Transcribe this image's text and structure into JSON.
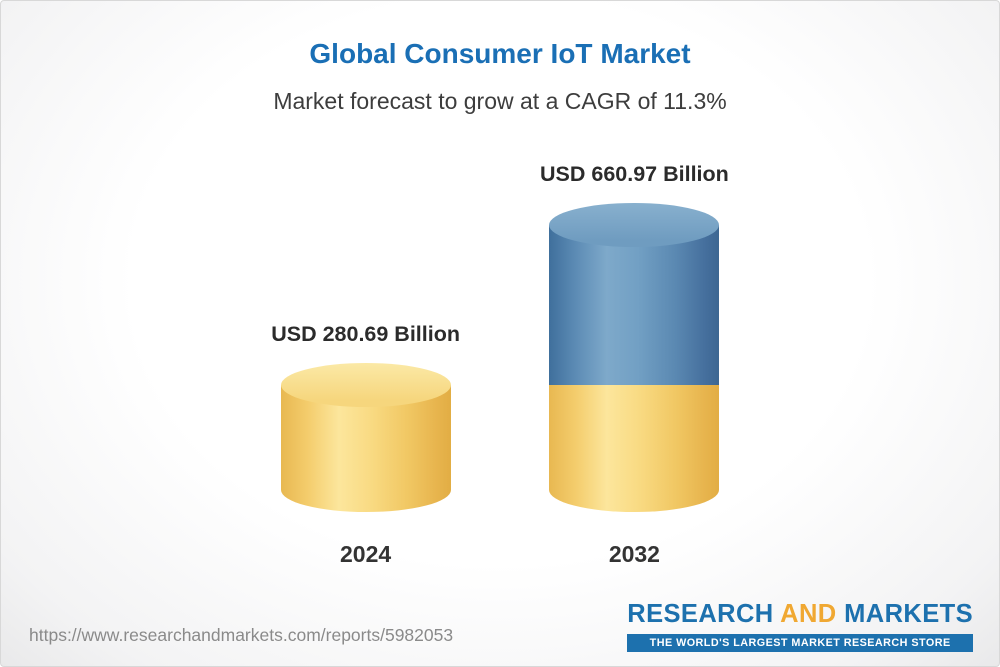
{
  "chart_data": {
    "type": "bar",
    "bar_style": "3d-cylinder",
    "title": "Global Consumer IoT Market",
    "subtitle": "Market forecast to grow at a CAGR of 11.3%",
    "cagr_percent": 11.3,
    "unit": "USD Billion",
    "categories": [
      "2024",
      "2032"
    ],
    "values": [
      280.69,
      660.97
    ],
    "value_labels": [
      "USD 280.69 Billion",
      "USD 660.97 Billion"
    ],
    "ylim": [
      0,
      700
    ],
    "legend": "none",
    "grid": "off",
    "segment_colors": {
      "base": "#f2c75f",
      "growth": "#5f8fb8"
    },
    "layout_note": "2032 cylinder is stacked: yellow base segment matches 2024 value, blue top segment shows growth to 660.97"
  },
  "footer": {
    "source_url": "https://www.researchandmarkets.com/reports/5982053",
    "logo": {
      "research": "RESEARCH",
      "and": "AND",
      "markets": "MARKETS",
      "tagline": "THE WORLD'S LARGEST MARKET RESEARCH STORE"
    }
  },
  "colors": {
    "title_blue": "#1a6fb5",
    "subtitle_gray": "#3d3d3d",
    "bar_yellow": "#f2c75f",
    "bar_blue": "#5f8fb8",
    "logo_blue": "#1d71ae",
    "logo_gold": "#f0a832",
    "url_gray": "#8a8a8a"
  }
}
